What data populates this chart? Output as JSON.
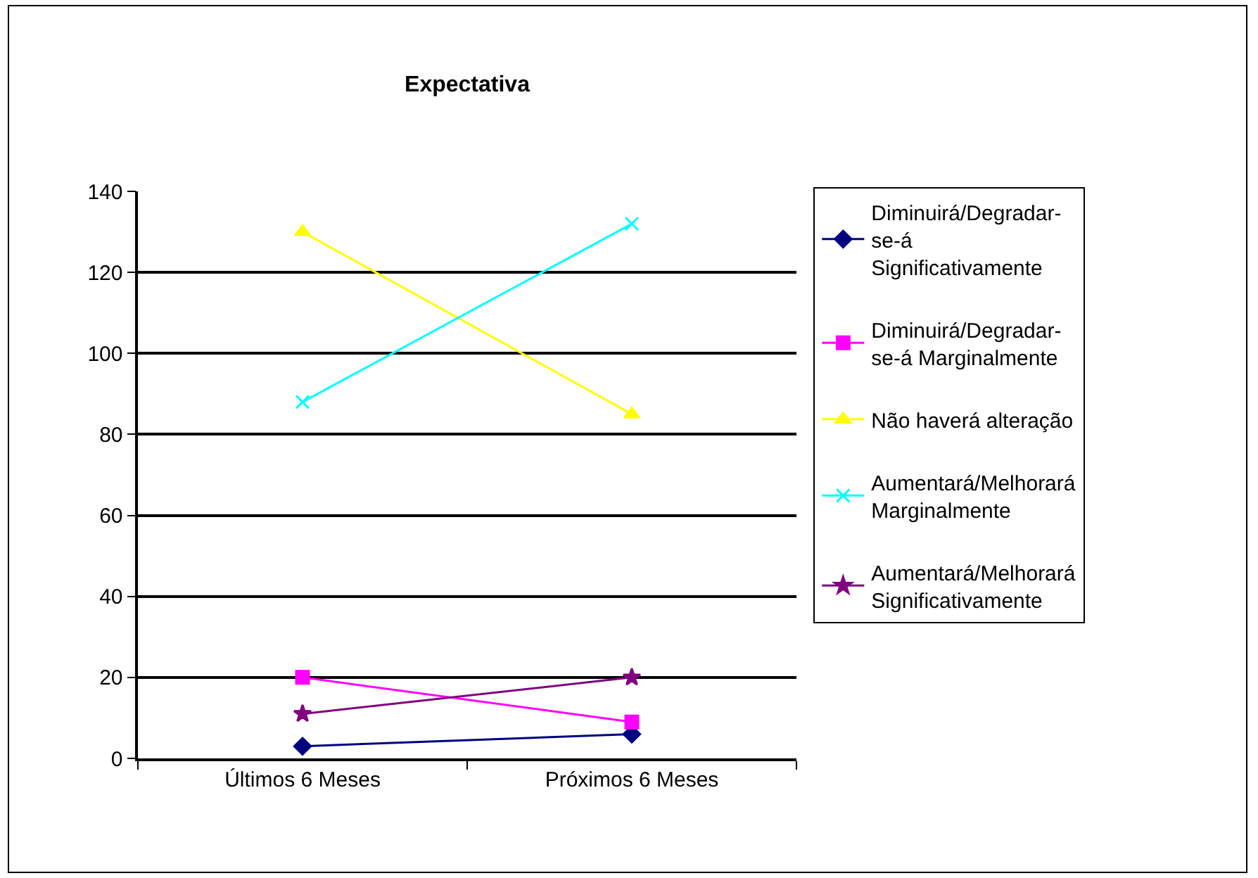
{
  "chart_data": {
    "type": "line",
    "title": "Expectativa",
    "categories": [
      "Últimos 6 Meses",
      "Próximos 6 Meses"
    ],
    "series": [
      {
        "name": "Diminuirá/Degradar-se-á Significativamente",
        "color": "#000080",
        "marker": "diamond",
        "values": [
          3,
          6
        ]
      },
      {
        "name": "Diminuirá/Degradar-se-á Marginalmente",
        "color": "#ff00ff",
        "marker": "square",
        "values": [
          20,
          9
        ]
      },
      {
        "name": "Não haverá alteração",
        "color": "#ffff00",
        "marker": "triangle",
        "values": [
          130,
          85
        ]
      },
      {
        "name": "Aumentará/Melhorará Marginalmente",
        "color": "#00ffff",
        "marker": "cross",
        "values": [
          88,
          132
        ]
      },
      {
        "name": "Aumentará/Melhorará Significativamente",
        "color": "#800080",
        "marker": "star",
        "values": [
          11,
          20
        ]
      }
    ],
    "ylim": [
      0,
      140
    ],
    "yticks": [
      0,
      20,
      40,
      60,
      80,
      100,
      120,
      140
    ],
    "grid": "y",
    "legend": "right",
    "line_style": "solid"
  }
}
